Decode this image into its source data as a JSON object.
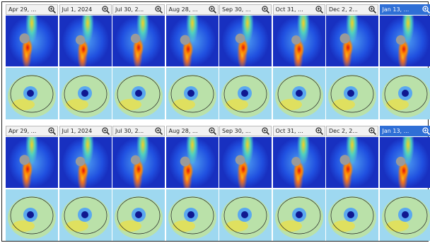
{
  "panels": [
    {
      "tiles": [
        {
          "label": "Apr 29, ...",
          "selected": false
        },
        {
          "label": "Jul 1, 2024",
          "selected": false
        },
        {
          "label": "Jul 30, 2...",
          "selected": false
        },
        {
          "label": "Aug 28, ...",
          "selected": false
        },
        {
          "label": "Sep 30, ...",
          "selected": false
        },
        {
          "label": "Oct 31, ...",
          "selected": false
        },
        {
          "label": "Dec 2, 2...",
          "selected": false
        },
        {
          "label": "Jan 13, ...",
          "selected": true
        }
      ]
    },
    {
      "tiles": [
        {
          "label": "Apr 29, ...",
          "selected": false
        },
        {
          "label": "Jul 1, 2024",
          "selected": false
        },
        {
          "label": "Jul 30, 2...",
          "selected": false
        },
        {
          "label": "Aug 28, ...",
          "selected": false
        },
        {
          "label": "Sep 30, ...",
          "selected": false
        },
        {
          "label": "Oct 31, ...",
          "selected": false
        },
        {
          "label": "Dec 2, 2...",
          "selected": false
        },
        {
          "label": "Jan 13, ...",
          "selected": true
        }
      ]
    }
  ]
}
